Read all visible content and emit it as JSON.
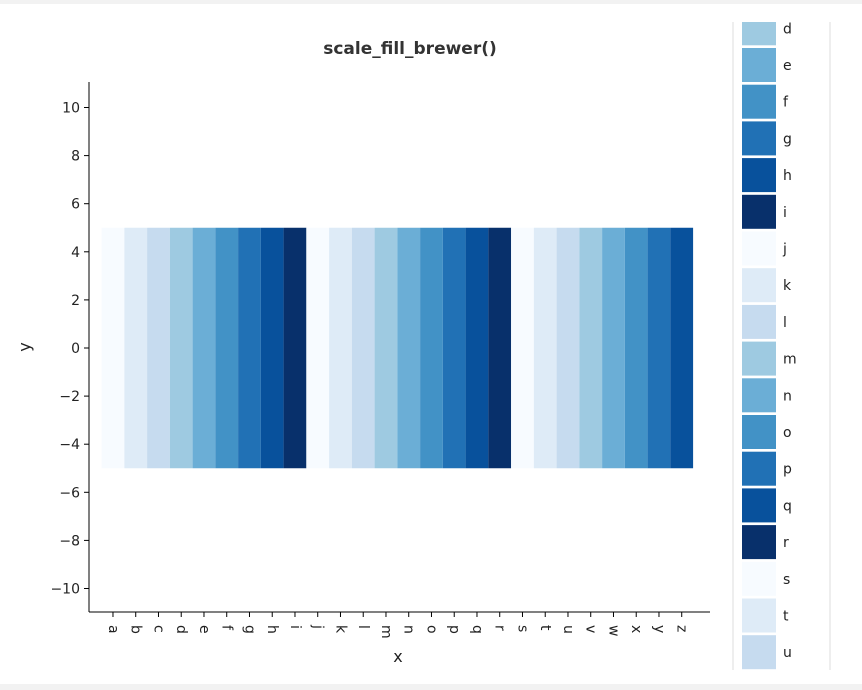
{
  "chart_data": {
    "type": "bar",
    "title": "scale_fill_brewer()",
    "xlabel": "x",
    "ylabel": "y",
    "ylim": [
      -11,
      11
    ],
    "y_ticks": [
      -10,
      -8,
      -6,
      -4,
      -2,
      0,
      2,
      4,
      6,
      8,
      10
    ],
    "y_tick_labels": [
      "−10",
      "−8",
      "−6",
      "−4",
      "−2",
      "0",
      "2",
      "4",
      "6",
      "8",
      "10"
    ],
    "categories": [
      "a",
      "b",
      "c",
      "d",
      "e",
      "f",
      "g",
      "h",
      "i",
      "j",
      "k",
      "l",
      "m",
      "n",
      "o",
      "p",
      "q",
      "r",
      "s",
      "t",
      "u",
      "v",
      "w",
      "x",
      "y",
      "z"
    ],
    "ymin": -5,
    "ymax": 5,
    "fill_colors": [
      "#f7fbff",
      "#deebf7",
      "#c6dbef",
      "#9ecae1",
      "#6baed6",
      "#4292c6",
      "#2171b5",
      "#08519c",
      "#08306b",
      "#f7fbff",
      "#deebf7",
      "#c6dbef",
      "#9ecae1",
      "#6baed6",
      "#4292c6",
      "#2171b5",
      "#08519c",
      "#08306b",
      "#f7fbff",
      "#deebf7",
      "#c6dbef",
      "#9ecae1",
      "#6baed6",
      "#4292c6",
      "#2171b5",
      "#08519c"
    ],
    "legend": {
      "placement": "right",
      "visible_entries": [
        "d",
        "e",
        "f",
        "g",
        "h",
        "i",
        "j",
        "k",
        "l",
        "m",
        "n",
        "o",
        "p",
        "q",
        "r",
        "s",
        "t",
        "u"
      ],
      "visible_colors": [
        "#9ecae1",
        "#6baed6",
        "#4292c6",
        "#2171b5",
        "#08519c",
        "#08306b",
        "#f7fbff",
        "#deebf7",
        "#c6dbef",
        "#9ecae1",
        "#6baed6",
        "#4292c6",
        "#2171b5",
        "#08519c",
        "#08306b",
        "#f7fbff",
        "#deebf7",
        "#c6dbef"
      ]
    },
    "grid": false
  }
}
